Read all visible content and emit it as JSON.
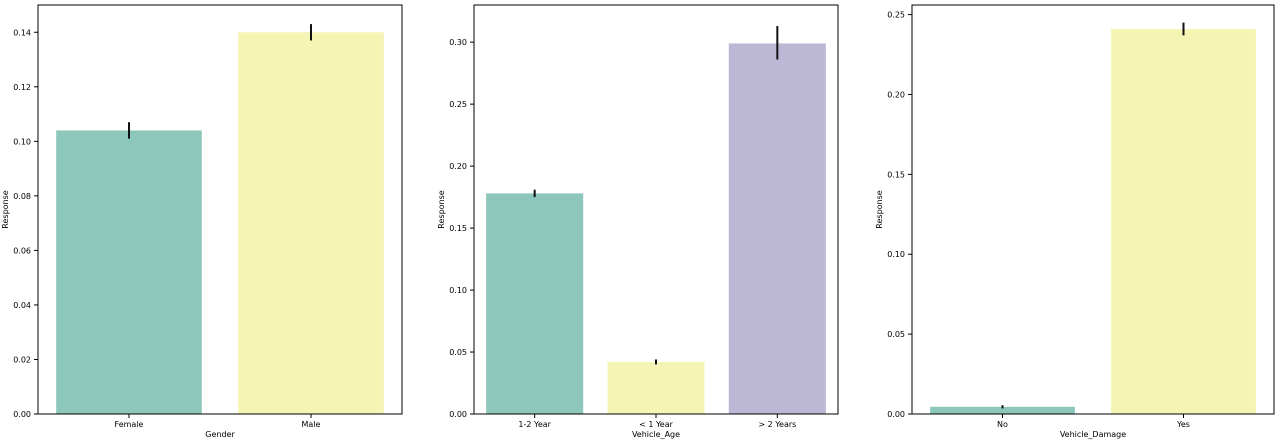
{
  "chart_data": [
    {
      "type": "bar",
      "xlabel": "Gender",
      "ylabel": "Response",
      "categories": [
        "Female",
        "Male"
      ],
      "values": [
        0.104,
        0.14
      ],
      "errors": [
        [
          0.101,
          0.107
        ],
        [
          0.137,
          0.143
        ]
      ],
      "colors": [
        "#8dc7bb",
        "#f4f4b5"
      ],
      "ylim": [
        0,
        0.15
      ],
      "yticks": [
        0.0,
        0.02,
        0.04,
        0.06,
        0.08,
        0.1,
        0.12,
        0.14
      ],
      "ytick_labels": [
        "0.00",
        "0.02",
        "0.04",
        "0.06",
        "0.08",
        "0.10",
        "0.12",
        "0.14"
      ],
      "grid": false
    },
    {
      "type": "bar",
      "xlabel": "Vehicle_Age",
      "ylabel": "Response",
      "categories": [
        "1-2 Year",
        "< 1 Year",
        "> 2 Years"
      ],
      "values": [
        0.178,
        0.042,
        0.299
      ],
      "errors": [
        [
          0.175,
          0.181
        ],
        [
          0.04,
          0.044
        ],
        [
          0.286,
          0.313
        ]
      ],
      "colors": [
        "#8dc7bb",
        "#f4f4b5",
        "#bcb7d4"
      ],
      "ylim": [
        0,
        0.33
      ],
      "yticks": [
        0.0,
        0.05,
        0.1,
        0.15,
        0.2,
        0.25,
        0.3
      ],
      "ytick_labels": [
        "0.00",
        "0.05",
        "0.10",
        "0.15",
        "0.20",
        "0.25",
        "0.30"
      ],
      "grid": false
    },
    {
      "type": "bar",
      "xlabel": "Vehicle_Damage",
      "ylabel": "Response",
      "categories": [
        "No",
        "Yes"
      ],
      "values": [
        0.0045,
        0.241
      ],
      "errors": [
        [
          0.0035,
          0.0055
        ],
        [
          0.237,
          0.245
        ]
      ],
      "colors": [
        "#8dc7bb",
        "#f4f4b5"
      ],
      "ylim": [
        0,
        0.256
      ],
      "yticks": [
        0.0,
        0.05,
        0.1,
        0.15,
        0.2,
        0.25
      ],
      "ytick_labels": [
        "0.00",
        "0.05",
        "0.10",
        "0.15",
        "0.20",
        "0.25"
      ],
      "grid": false
    }
  ]
}
